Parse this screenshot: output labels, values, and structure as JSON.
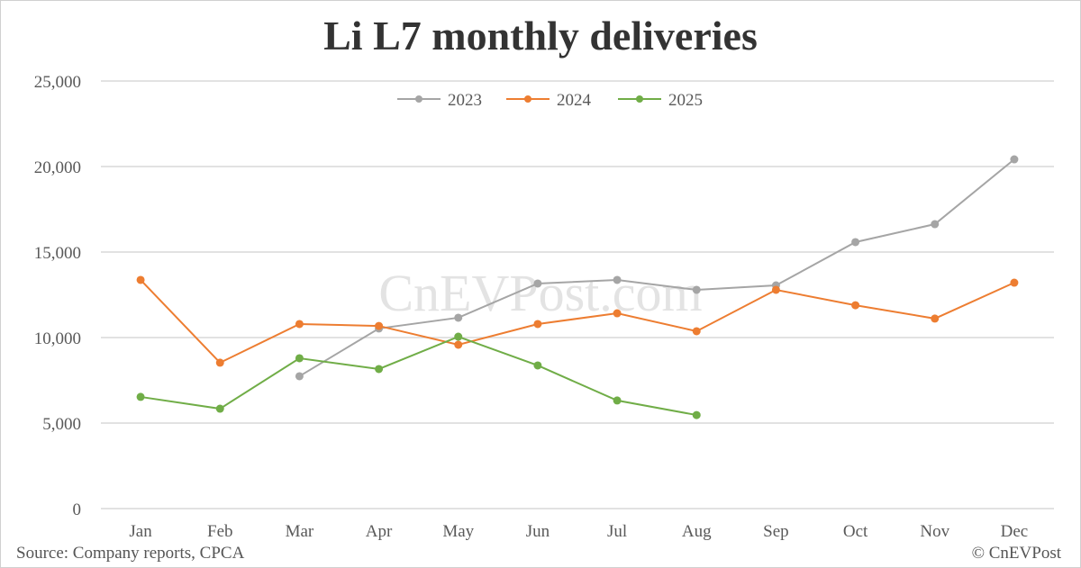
{
  "title": "Li L7 monthly deliveries",
  "source": "Source: Company reports, CPCA",
  "copyright": "© CnEVPost",
  "watermark": "CnEVPost.com",
  "colors": {
    "2023": "#a5a5a5",
    "2024": "#ed7d31",
    "2025": "#70ad47",
    "grid": "#d9d9d9",
    "text": "#595959"
  },
  "chart_data": {
    "type": "line",
    "title": "Li L7 monthly deliveries",
    "xlabel": "",
    "ylabel": "",
    "categories": [
      "Jan",
      "Feb",
      "Mar",
      "Apr",
      "May",
      "Jun",
      "Jul",
      "Aug",
      "Sep",
      "Oct",
      "Nov",
      "Dec"
    ],
    "ylim": [
      0,
      25000
    ],
    "yticks": [
      0,
      5000,
      10000,
      15000,
      20000,
      25000
    ],
    "ytick_labels": [
      "0",
      "5,000",
      "10,000",
      "15,000",
      "20,000",
      "25,000"
    ],
    "grid": true,
    "legend_position": "top",
    "series": [
      {
        "name": "2023",
        "color": "#a5a5a5",
        "values": [
          null,
          null,
          7740,
          10530,
          11160,
          13160,
          13370,
          12790,
          13050,
          15580,
          16630,
          20420
        ]
      },
      {
        "name": "2024",
        "color": "#ed7d31",
        "values": [
          13370,
          8530,
          10790,
          10680,
          9580,
          10790,
          11420,
          10370,
          12790,
          11890,
          11110,
          13210
        ]
      },
      {
        "name": "2025",
        "color": "#70ad47",
        "values": [
          6530,
          5840,
          8790,
          8160,
          10050,
          8370,
          6320,
          5470,
          null,
          null,
          null,
          null
        ]
      }
    ]
  }
}
